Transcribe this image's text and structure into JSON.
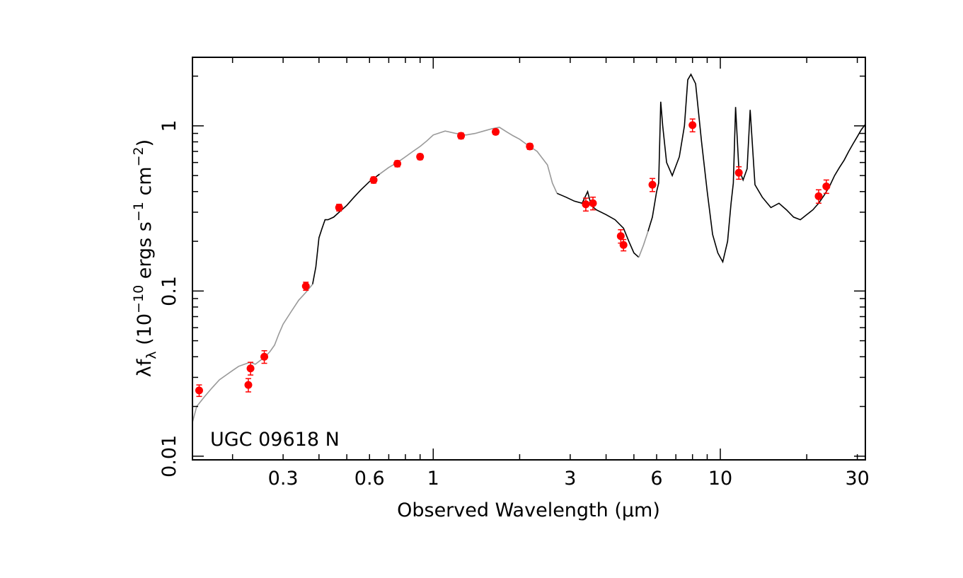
{
  "chart_data": {
    "type": "line",
    "title": "",
    "annotation": "UGC 09618 N",
    "xlabel": "Observed Wavelength (μm)",
    "ylabel_parts": {
      "lambda": "λf",
      "lambda_sub": "λ",
      "open": " (10",
      "exp1": "−10",
      "mid": " ergs s",
      "exp2": "−1",
      "mid2": " cm",
      "exp3": "−2",
      "close": ")"
    },
    "xscale": "log",
    "yscale": "log",
    "xlim": [
      0.145,
      32
    ],
    "ylim": [
      0.0095,
      2.6
    ],
    "x_ticks": [
      {
        "value": 0.3,
        "label": "0.3"
      },
      {
        "value": 0.6,
        "label": "0.6"
      },
      {
        "value": 1,
        "label": "1"
      },
      {
        "value": 3,
        "label": "3"
      },
      {
        "value": 6,
        "label": "6"
      },
      {
        "value": 10,
        "label": "10"
      },
      {
        "value": 30,
        "label": "30"
      }
    ],
    "y_ticks": [
      {
        "value": 0.01,
        "label": "0.01"
      },
      {
        "value": 0.1,
        "label": "0.1"
      },
      {
        "value": 1,
        "label": "1"
      }
    ],
    "series": [
      {
        "role": "model",
        "color": "#999999",
        "points": [
          [
            0.145,
            0.016
          ],
          [
            0.15,
            0.02
          ],
          [
            0.16,
            0.023
          ],
          [
            0.17,
            0.026
          ],
          [
            0.18,
            0.029
          ],
          [
            0.19,
            0.031
          ],
          [
            0.2,
            0.033
          ],
          [
            0.21,
            0.035
          ],
          [
            0.22,
            0.036
          ],
          [
            0.23,
            0.037
          ],
          [
            0.24,
            0.036
          ],
          [
            0.25,
            0.038
          ],
          [
            0.26,
            0.04
          ],
          [
            0.27,
            0.043
          ],
          [
            0.28,
            0.047
          ],
          [
            0.29,
            0.055
          ],
          [
            0.3,
            0.063
          ],
          [
            0.32,
            0.075
          ],
          [
            0.34,
            0.088
          ],
          [
            0.36,
            0.098
          ],
          [
            0.38,
            0.11
          ]
        ]
      },
      {
        "role": "spectrum",
        "color": "#000000",
        "points": [
          [
            0.38,
            0.11
          ],
          [
            0.39,
            0.14
          ],
          [
            0.4,
            0.21
          ],
          [
            0.41,
            0.24
          ],
          [
            0.42,
            0.27
          ],
          [
            0.43,
            0.27
          ],
          [
            0.45,
            0.28
          ],
          [
            0.47,
            0.3
          ],
          [
            0.5,
            0.33
          ],
          [
            0.53,
            0.37
          ],
          [
            0.56,
            0.41
          ],
          [
            0.6,
            0.46
          ],
          [
            0.65,
            0.51
          ]
        ]
      },
      {
        "role": "model",
        "color": "#999999",
        "points": [
          [
            0.65,
            0.51
          ],
          [
            0.7,
            0.56
          ],
          [
            0.75,
            0.6
          ],
          [
            0.8,
            0.65
          ],
          [
            0.85,
            0.7
          ],
          [
            0.9,
            0.75
          ],
          [
            0.95,
            0.81
          ],
          [
            1.0,
            0.88
          ],
          [
            1.1,
            0.93
          ],
          [
            1.2,
            0.9
          ],
          [
            1.3,
            0.88
          ],
          [
            1.4,
            0.9
          ],
          [
            1.5,
            0.93
          ],
          [
            1.6,
            0.96
          ],
          [
            1.7,
            0.98
          ],
          [
            1.8,
            0.92
          ],
          [
            1.9,
            0.87
          ],
          [
            2.0,
            0.83
          ],
          [
            2.1,
            0.78
          ],
          [
            2.3,
            0.7
          ],
          [
            2.5,
            0.58
          ],
          [
            2.6,
            0.45
          ],
          [
            2.7,
            0.39
          ]
        ]
      },
      {
        "role": "spectrum",
        "color": "#000000",
        "points": [
          [
            2.7,
            0.39
          ],
          [
            2.9,
            0.37
          ],
          [
            3.1,
            0.35
          ],
          [
            3.3,
            0.34
          ],
          [
            3.45,
            0.4
          ],
          [
            3.55,
            0.33
          ],
          [
            3.7,
            0.31
          ],
          [
            4.0,
            0.29
          ],
          [
            4.3,
            0.27
          ],
          [
            4.6,
            0.24
          ],
          [
            4.8,
            0.2
          ],
          [
            5.0,
            0.17
          ],
          [
            5.2,
            0.16
          ]
        ]
      },
      {
        "role": "model",
        "color": "#999999",
        "points": [
          [
            5.2,
            0.16
          ],
          [
            5.4,
            0.19
          ],
          [
            5.6,
            0.23
          ]
        ]
      },
      {
        "role": "spectrum",
        "color": "#000000",
        "points": [
          [
            5.6,
            0.23
          ],
          [
            5.8,
            0.28
          ],
          [
            6.0,
            0.4
          ],
          [
            6.1,
            0.45
          ],
          [
            6.2,
            1.4
          ],
          [
            6.3,
            1.0
          ],
          [
            6.5,
            0.6
          ],
          [
            6.8,
            0.5
          ],
          [
            7.2,
            0.65
          ],
          [
            7.5,
            1.0
          ],
          [
            7.7,
            1.9
          ],
          [
            7.9,
            2.05
          ],
          [
            8.2,
            1.8
          ],
          [
            8.6,
            0.8
          ],
          [
            9.0,
            0.4
          ],
          [
            9.4,
            0.22
          ],
          [
            9.8,
            0.17
          ],
          [
            10.2,
            0.15
          ],
          [
            10.6,
            0.2
          ],
          [
            10.9,
            0.34
          ],
          [
            11.1,
            0.45
          ],
          [
            11.3,
            1.3
          ],
          [
            11.6,
            0.55
          ],
          [
            12.0,
            0.47
          ],
          [
            12.4,
            0.55
          ],
          [
            12.7,
            1.25
          ],
          [
            13.2,
            0.44
          ],
          [
            14.0,
            0.37
          ],
          [
            15.0,
            0.32
          ],
          [
            16.0,
            0.34
          ],
          [
            17.0,
            0.31
          ],
          [
            18.0,
            0.28
          ],
          [
            19.0,
            0.27
          ],
          [
            20.0,
            0.29
          ],
          [
            21.0,
            0.31
          ],
          [
            22.0,
            0.34
          ],
          [
            23.0,
            0.38
          ],
          [
            24.0,
            0.43
          ],
          [
            25.0,
            0.5
          ],
          [
            26.0,
            0.56
          ],
          [
            27.0,
            0.62
          ],
          [
            28.0,
            0.7
          ],
          [
            29.0,
            0.78
          ],
          [
            30.0,
            0.86
          ],
          [
            31.0,
            0.95
          ],
          [
            32.0,
            1.02
          ]
        ]
      }
    ],
    "photometry": {
      "color": "#ff0000",
      "points": [
        {
          "x": 0.153,
          "y": 0.025,
          "err": 0.002
        },
        {
          "x": 0.227,
          "y": 0.027,
          "err": 0.0025
        },
        {
          "x": 0.231,
          "y": 0.034,
          "err": 0.003
        },
        {
          "x": 0.258,
          "y": 0.04,
          "err": 0.0035
        },
        {
          "x": 0.36,
          "y": 0.107,
          "err": 0.006
        },
        {
          "x": 0.47,
          "y": 0.32,
          "err": 0.015
        },
        {
          "x": 0.62,
          "y": 0.47,
          "err": 0.02
        },
        {
          "x": 0.75,
          "y": 0.59,
          "err": 0.025
        },
        {
          "x": 0.9,
          "y": 0.65,
          "err": 0.025
        },
        {
          "x": 1.25,
          "y": 0.87,
          "err": 0.035
        },
        {
          "x": 1.65,
          "y": 0.92,
          "err": 0.035
        },
        {
          "x": 2.17,
          "y": 0.75,
          "err": 0.03
        },
        {
          "x": 3.4,
          "y": 0.335,
          "err": 0.03
        },
        {
          "x": 3.6,
          "y": 0.34,
          "err": 0.03
        },
        {
          "x": 4.5,
          "y": 0.215,
          "err": 0.02
        },
        {
          "x": 4.6,
          "y": 0.19,
          "err": 0.015
        },
        {
          "x": 5.8,
          "y": 0.44,
          "err": 0.04
        },
        {
          "x": 8.0,
          "y": 1.01,
          "err": 0.09
        },
        {
          "x": 11.6,
          "y": 0.52,
          "err": 0.045
        },
        {
          "x": 22.0,
          "y": 0.375,
          "err": 0.035
        },
        {
          "x": 23.4,
          "y": 0.43,
          "err": 0.04
        }
      ]
    }
  }
}
